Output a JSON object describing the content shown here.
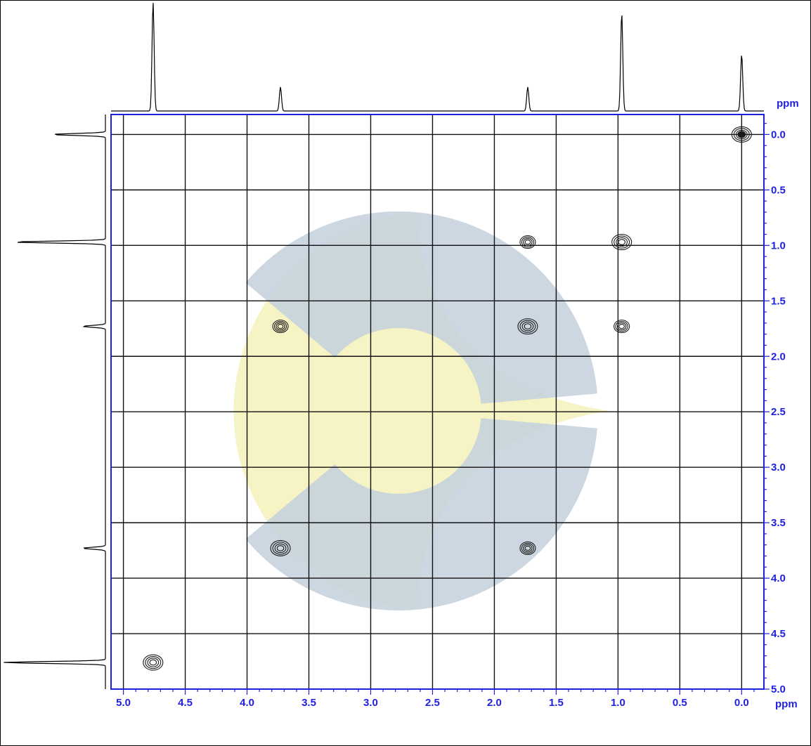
{
  "chart_data": {
    "type": "scatter",
    "subtype": "2D NMR COSY contour plot with 1D projections",
    "x_axis": {
      "unit_label": "ppm",
      "reversed": true,
      "range": [
        5.1,
        -0.18
      ],
      "tick_values": [
        5.0,
        4.5,
        4.0,
        3.5,
        3.0,
        2.5,
        2.0,
        1.5,
        1.0,
        0.5,
        0.0
      ],
      "tick_labels": [
        "5.0",
        "4.5",
        "4.0",
        "3.5",
        "3.0",
        "2.5",
        "2.0",
        "1.5",
        "1.0",
        "0.5",
        "0.0"
      ]
    },
    "y_axis": {
      "unit_label": "ppm",
      "position": "right",
      "range": [
        -0.18,
        5.0
      ],
      "tick_values": [
        0.0,
        0.5,
        1.0,
        1.5,
        2.0,
        2.5,
        3.0,
        3.5,
        4.0,
        4.5,
        5.0
      ],
      "tick_labels": [
        "0.0",
        "0.5",
        "1.0",
        "1.5",
        "2.0",
        "2.5",
        "3.0",
        "3.5",
        "4.0",
        "4.5",
        "5.0"
      ]
    },
    "grid": true,
    "cross_peaks": [
      {
        "x": 0.0,
        "y": 0.0,
        "kind": "diagonal"
      },
      {
        "x": 0.97,
        "y": 0.97,
        "kind": "diagonal"
      },
      {
        "x": 1.73,
        "y": 0.97,
        "kind": "cross"
      },
      {
        "x": 3.73,
        "y": 1.73,
        "kind": "cross"
      },
      {
        "x": 1.73,
        "y": 1.73,
        "kind": "diagonal"
      },
      {
        "x": 0.97,
        "y": 1.73,
        "kind": "cross"
      },
      {
        "x": 3.73,
        "y": 3.73,
        "kind": "diagonal"
      },
      {
        "x": 1.73,
        "y": 3.73,
        "kind": "cross"
      },
      {
        "x": 4.76,
        "y": 4.76,
        "kind": "diagonal"
      }
    ],
    "projection_peaks": [
      {
        "shift": 4.76,
        "height": 1.0
      },
      {
        "shift": 3.73,
        "height": 0.22
      },
      {
        "shift": 1.73,
        "height": 0.22
      },
      {
        "shift": 0.97,
        "height": 0.9
      },
      {
        "shift": 0.0,
        "height": 0.52
      }
    ]
  },
  "colors": {
    "axis_blue": "#1f1fe0",
    "grid": "#111111",
    "contour": "#1a1a1a",
    "watermark_blue": "#c7d3de",
    "watermark_yellow": "#f6f3c4"
  }
}
